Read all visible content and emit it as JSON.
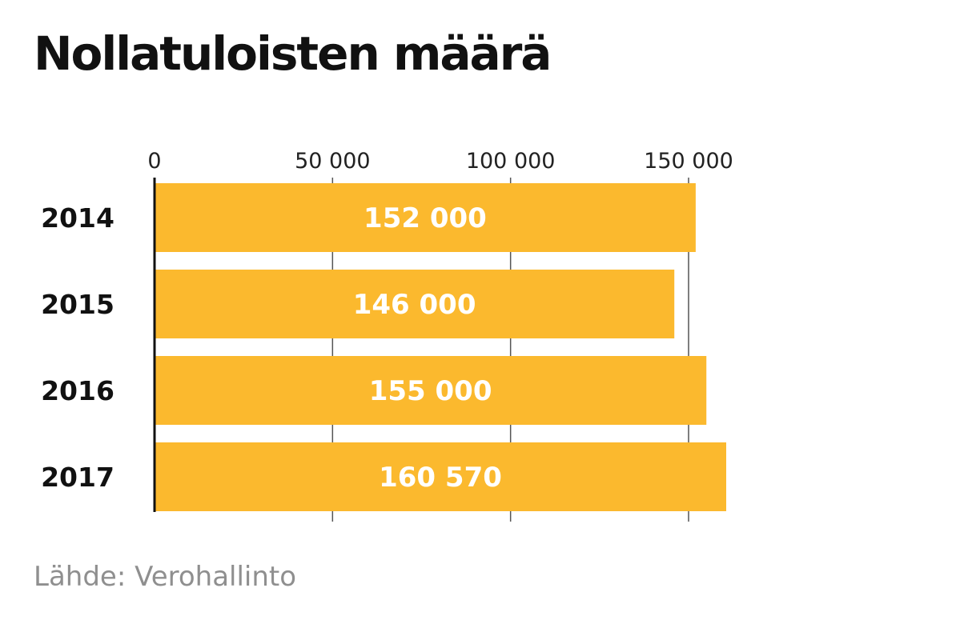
{
  "chart_data": {
    "type": "bar",
    "orientation": "horizontal",
    "title": "Nollatuloisten määrä",
    "categories": [
      "2014",
      "2015",
      "2016",
      "2017"
    ],
    "values": [
      152000,
      146000,
      155000,
      160570
    ],
    "data_labels": [
      "152 000",
      "146 000",
      "155 000",
      "160 570"
    ],
    "xlim": [
      0,
      160570
    ],
    "x_ticks": [
      0,
      50000,
      100000,
      150000
    ],
    "x_tick_labels": [
      "0",
      "50 000",
      "100 000",
      "150 000"
    ],
    "tick_position": "top",
    "grid": true,
    "source": "Lähde: Verohallinto",
    "colors": {
      "bar": "#fbb92e",
      "value_label": "#ffffff",
      "grid": "#555555",
      "axis": "#111111"
    }
  }
}
